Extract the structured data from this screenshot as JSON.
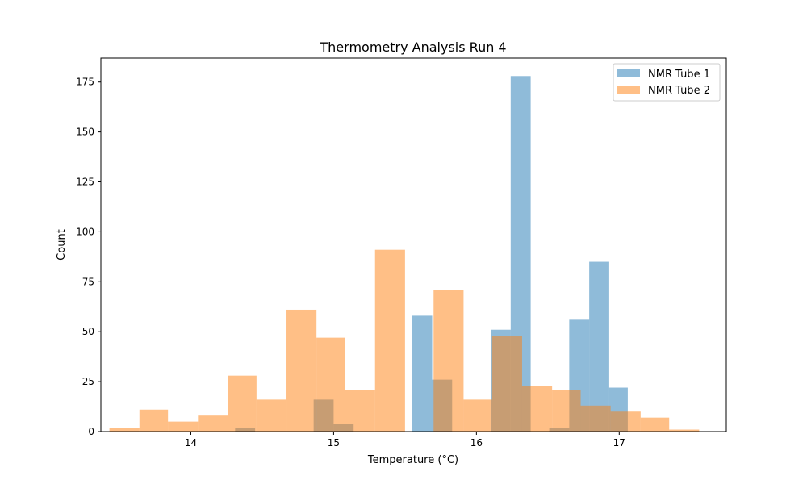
{
  "chart_data": {
    "type": "bar",
    "histogram": true,
    "title": "Thermometry Analysis Run 4",
    "xlabel": "Temperature (°C)",
    "ylabel": "Count",
    "xlim": [
      13.37,
      17.75
    ],
    "ylim": [
      0,
      187
    ],
    "xticks": [
      14,
      15,
      16,
      17
    ],
    "xtick_labels": [
      "14",
      "15",
      "16",
      "17"
    ],
    "yticks": [
      0,
      25,
      50,
      75,
      100,
      125,
      150,
      175
    ],
    "ytick_labels": [
      "0",
      "25",
      "50",
      "75",
      "100",
      "125",
      "150",
      "175"
    ],
    "grid": false,
    "legend_position": "top-right",
    "opacity": 0.5,
    "series": [
      {
        "name": "NMR Tube 1",
        "color": "#1f77b4",
        "bins": [
          {
            "x0": 14.31,
            "x1": 14.45,
            "count": 2
          },
          {
            "x0": 14.86,
            "x1": 15.0,
            "count": 16
          },
          {
            "x0": 15.0,
            "x1": 15.14,
            "count": 4
          },
          {
            "x0": 15.55,
            "x1": 15.69,
            "count": 58
          },
          {
            "x0": 15.69,
            "x1": 15.83,
            "count": 26
          },
          {
            "x0": 16.1,
            "x1": 16.24,
            "count": 51
          },
          {
            "x0": 16.24,
            "x1": 16.38,
            "count": 178
          },
          {
            "x0": 16.51,
            "x1": 16.65,
            "count": 2
          },
          {
            "x0": 16.65,
            "x1": 16.79,
            "count": 56
          },
          {
            "x0": 16.79,
            "x1": 16.93,
            "count": 85
          },
          {
            "x0": 16.93,
            "x1": 17.06,
            "count": 22
          }
        ]
      },
      {
        "name": "NMR Tube 2",
        "color": "#ff7f0e",
        "bins": [
          {
            "x0": 13.43,
            "x1": 13.64,
            "count": 2
          },
          {
            "x0": 13.64,
            "x1": 13.84,
            "count": 11
          },
          {
            "x0": 13.84,
            "x1": 14.05,
            "count": 5
          },
          {
            "x0": 14.05,
            "x1": 14.26,
            "count": 8
          },
          {
            "x0": 14.26,
            "x1": 14.46,
            "count": 28
          },
          {
            "x0": 14.46,
            "x1": 14.67,
            "count": 16
          },
          {
            "x0": 14.67,
            "x1": 14.88,
            "count": 61
          },
          {
            "x0": 14.88,
            "x1": 15.08,
            "count": 47
          },
          {
            "x0": 15.08,
            "x1": 15.29,
            "count": 21
          },
          {
            "x0": 15.29,
            "x1": 15.5,
            "count": 91
          },
          {
            "x0": 15.5,
            "x1": 15.7,
            "count": 0
          },
          {
            "x0": 15.7,
            "x1": 15.91,
            "count": 71
          },
          {
            "x0": 15.91,
            "x1": 16.11,
            "count": 16
          },
          {
            "x0": 16.11,
            "x1": 16.32,
            "count": 48
          },
          {
            "x0": 16.32,
            "x1": 16.53,
            "count": 23
          },
          {
            "x0": 16.53,
            "x1": 16.73,
            "count": 21
          },
          {
            "x0": 16.73,
            "x1": 16.94,
            "count": 13
          },
          {
            "x0": 16.94,
            "x1": 17.15,
            "count": 10
          },
          {
            "x0": 17.15,
            "x1": 17.35,
            "count": 7
          },
          {
            "x0": 17.35,
            "x1": 17.56,
            "count": 1
          }
        ]
      }
    ]
  }
}
